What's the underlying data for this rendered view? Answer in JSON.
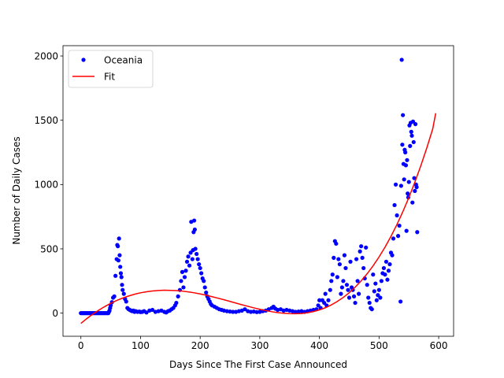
{
  "chart_data": {
    "type": "scatter",
    "title": "",
    "xlabel": "Days Since The First Case Announced",
    "ylabel": "Number of Daily Cases",
    "xlim": [
      -30,
      625
    ],
    "ylim": [
      -180,
      2080
    ],
    "xticks": [
      0,
      100,
      200,
      300,
      400,
      500,
      600
    ],
    "yticks": [
      0,
      500,
      1000,
      1500,
      2000
    ],
    "grid": false,
    "legend_position": "top-left",
    "series": [
      {
        "name": "Oceania",
        "kind": "points",
        "color": "#0000ff",
        "points": [
          [
            0,
            0
          ],
          [
            2,
            0
          ],
          [
            4,
            0
          ],
          [
            6,
            0
          ],
          [
            8,
            0
          ],
          [
            10,
            0
          ],
          [
            12,
            0
          ],
          [
            14,
            0
          ],
          [
            16,
            0
          ],
          [
            18,
            0
          ],
          [
            20,
            0
          ],
          [
            22,
            0
          ],
          [
            24,
            0
          ],
          [
            26,
            0
          ],
          [
            28,
            0
          ],
          [
            30,
            0
          ],
          [
            32,
            0
          ],
          [
            34,
            0
          ],
          [
            36,
            0
          ],
          [
            38,
            0
          ],
          [
            40,
            0
          ],
          [
            42,
            0
          ],
          [
            44,
            0
          ],
          [
            46,
            0
          ],
          [
            47,
            10
          ],
          [
            48,
            20
          ],
          [
            49,
            40
          ],
          [
            50,
            60
          ],
          [
            52,
            85
          ],
          [
            54,
            120
          ],
          [
            56,
            130
          ],
          [
            58,
            290
          ],
          [
            60,
            420
          ],
          [
            61,
            530
          ],
          [
            62,
            520
          ],
          [
            63,
            410
          ],
          [
            64,
            580
          ],
          [
            65,
            450
          ],
          [
            66,
            360
          ],
          [
            67,
            310
          ],
          [
            68,
            280
          ],
          [
            69,
            220
          ],
          [
            70,
            180
          ],
          [
            72,
            150
          ],
          [
            74,
            110
          ],
          [
            76,
            90
          ],
          [
            78,
            40
          ],
          [
            80,
            30
          ],
          [
            82,
            25
          ],
          [
            84,
            20
          ],
          [
            86,
            15
          ],
          [
            88,
            20
          ],
          [
            90,
            10
          ],
          [
            92,
            15
          ],
          [
            95,
            10
          ],
          [
            98,
            12
          ],
          [
            100,
            8
          ],
          [
            103,
            10
          ],
          [
            106,
            15
          ],
          [
            110,
            5
          ],
          [
            115,
            20
          ],
          [
            120,
            25
          ],
          [
            125,
            10
          ],
          [
            130,
            15
          ],
          [
            135,
            20
          ],
          [
            140,
            10
          ],
          [
            143,
            5
          ],
          [
            146,
            15
          ],
          [
            149,
            20
          ],
          [
            152,
            30
          ],
          [
            155,
            40
          ],
          [
            158,
            60
          ],
          [
            160,
            80
          ],
          [
            163,
            130
          ],
          [
            166,
            180
          ],
          [
            168,
            250
          ],
          [
            170,
            320
          ],
          [
            172,
            200
          ],
          [
            174,
            280
          ],
          [
            176,
            330
          ],
          [
            178,
            400
          ],
          [
            180,
            440
          ],
          [
            182,
            370
          ],
          [
            184,
            470
          ],
          [
            185,
            710
          ],
          [
            187,
            420
          ],
          [
            188,
            490
          ],
          [
            189,
            630
          ],
          [
            190,
            720
          ],
          [
            191,
            650
          ],
          [
            192,
            500
          ],
          [
            194,
            460
          ],
          [
            196,
            420
          ],
          [
            198,
            380
          ],
          [
            200,
            350
          ],
          [
            202,
            310
          ],
          [
            204,
            270
          ],
          [
            206,
            250
          ],
          [
            208,
            200
          ],
          [
            210,
            160
          ],
          [
            212,
            130
          ],
          [
            214,
            110
          ],
          [
            216,
            90
          ],
          [
            218,
            70
          ],
          [
            220,
            60
          ],
          [
            224,
            50
          ],
          [
            228,
            40
          ],
          [
            232,
            30
          ],
          [
            236,
            25
          ],
          [
            240,
            20
          ],
          [
            245,
            15
          ],
          [
            250,
            12
          ],
          [
            255,
            10
          ],
          [
            260,
            10
          ],
          [
            265,
            15
          ],
          [
            270,
            20
          ],
          [
            275,
            30
          ],
          [
            280,
            15
          ],
          [
            285,
            10
          ],
          [
            290,
            12
          ],
          [
            295,
            8
          ],
          [
            300,
            10
          ],
          [
            305,
            15
          ],
          [
            310,
            20
          ],
          [
            315,
            30
          ],
          [
            320,
            40
          ],
          [
            323,
            50
          ],
          [
            326,
            35
          ],
          [
            330,
            25
          ],
          [
            335,
            30
          ],
          [
            340,
            20
          ],
          [
            345,
            25
          ],
          [
            350,
            20
          ],
          [
            355,
            15
          ],
          [
            360,
            10
          ],
          [
            365,
            12
          ],
          [
            370,
            15
          ],
          [
            375,
            10
          ],
          [
            380,
            15
          ],
          [
            385,
            20
          ],
          [
            390,
            25
          ],
          [
            395,
            30
          ],
          [
            398,
            60
          ],
          [
            400,
            100
          ],
          [
            402,
            40
          ],
          [
            405,
            100
          ],
          [
            408,
            80
          ],
          [
            410,
            150
          ],
          [
            412,
            60
          ],
          [
            415,
            100
          ],
          [
            418,
            180
          ],
          [
            420,
            250
          ],
          [
            422,
            300
          ],
          [
            424,
            430
          ],
          [
            426,
            560
          ],
          [
            428,
            540
          ],
          [
            430,
            280
          ],
          [
            432,
            420
          ],
          [
            434,
            380
          ],
          [
            436,
            150
          ],
          [
            438,
            200
          ],
          [
            440,
            250
          ],
          [
            442,
            450
          ],
          [
            444,
            350
          ],
          [
            446,
            220
          ],
          [
            448,
            180
          ],
          [
            450,
            120
          ],
          [
            452,
            400
          ],
          [
            454,
            200
          ],
          [
            456,
            180
          ],
          [
            458,
            130
          ],
          [
            460,
            80
          ],
          [
            462,
            420
          ],
          [
            464,
            250
          ],
          [
            466,
            150
          ],
          [
            468,
            480
          ],
          [
            470,
            520
          ],
          [
            472,
            430
          ],
          [
            474,
            350
          ],
          [
            476,
            270
          ],
          [
            478,
            510
          ],
          [
            480,
            220
          ],
          [
            482,
            120
          ],
          [
            484,
            80
          ],
          [
            486,
            40
          ],
          [
            488,
            30
          ],
          [
            490,
            300
          ],
          [
            492,
            170
          ],
          [
            494,
            230
          ],
          [
            496,
            100
          ],
          [
            498,
            140
          ],
          [
            500,
            180
          ],
          [
            502,
            120
          ],
          [
            504,
            250
          ],
          [
            506,
            310
          ],
          [
            508,
            350
          ],
          [
            510,
            300
          ],
          [
            512,
            400
          ],
          [
            514,
            260
          ],
          [
            516,
            330
          ],
          [
            518,
            380
          ],
          [
            520,
            470
          ],
          [
            522,
            450
          ],
          [
            524,
            580
          ],
          [
            526,
            840
          ],
          [
            528,
            1000
          ],
          [
            530,
            760
          ],
          [
            532,
            600
          ],
          [
            534,
            680
          ],
          [
            536,
            90
          ],
          [
            537,
            990
          ],
          [
            538,
            1970
          ],
          [
            539,
            1310
          ],
          [
            540,
            1540
          ],
          [
            541,
            1160
          ],
          [
            542,
            1040
          ],
          [
            543,
            1270
          ],
          [
            544,
            1250
          ],
          [
            545,
            1150
          ],
          [
            546,
            640
          ],
          [
            547,
            1190
          ],
          [
            548,
            930
          ],
          [
            549,
            900
          ],
          [
            550,
            1020
          ],
          [
            551,
            1460
          ],
          [
            552,
            1300
          ],
          [
            553,
            1480
          ],
          [
            554,
            1410
          ],
          [
            555,
            1380
          ],
          [
            556,
            860
          ],
          [
            557,
            1490
          ],
          [
            558,
            1330
          ],
          [
            559,
            1050
          ],
          [
            560,
            950
          ],
          [
            561,
            1470
          ],
          [
            562,
            1000
          ],
          [
            563,
            980
          ],
          [
            564,
            630
          ]
        ]
      },
      {
        "name": "Fit",
        "kind": "line",
        "color": "#ff0000",
        "points": [
          [
            0,
            -80
          ],
          [
            10,
            -42
          ],
          [
            20,
            -8
          ],
          [
            30,
            23
          ],
          [
            40,
            51
          ],
          [
            50,
            76
          ],
          [
            60,
            98
          ],
          [
            70,
            117
          ],
          [
            80,
            133
          ],
          [
            90,
            147
          ],
          [
            100,
            158
          ],
          [
            110,
            166
          ],
          [
            120,
            172
          ],
          [
            130,
            176
          ],
          [
            140,
            178
          ],
          [
            150,
            177
          ],
          [
            160,
            175
          ],
          [
            170,
            171
          ],
          [
            180,
            165
          ],
          [
            190,
            158
          ],
          [
            200,
            149
          ],
          [
            210,
            139
          ],
          [
            220,
            128
          ],
          [
            230,
            116
          ],
          [
            240,
            104
          ],
          [
            250,
            91
          ],
          [
            260,
            78
          ],
          [
            270,
            65
          ],
          [
            280,
            53
          ],
          [
            290,
            41
          ],
          [
            300,
            30
          ],
          [
            310,
            20
          ],
          [
            320,
            11
          ],
          [
            330,
            4
          ],
          [
            340,
            -1
          ],
          [
            350,
            -4
          ],
          [
            360,
            -5
          ],
          [
            370,
            -3
          ],
          [
            380,
            3
          ],
          [
            390,
            12
          ],
          [
            400,
            25
          ],
          [
            410,
            42
          ],
          [
            420,
            64
          ],
          [
            430,
            91
          ],
          [
            440,
            122
          ],
          [
            450,
            159
          ],
          [
            460,
            202
          ],
          [
            470,
            251
          ],
          [
            480,
            306
          ],
          [
            490,
            368
          ],
          [
            500,
            437
          ],
          [
            510,
            513
          ],
          [
            520,
            597
          ],
          [
            530,
            689
          ],
          [
            540,
            790
          ],
          [
            550,
            899
          ],
          [
            560,
            1018
          ],
          [
            570,
            1146
          ],
          [
            580,
            1284
          ],
          [
            590,
            1433
          ],
          [
            595,
            1555
          ]
        ]
      }
    ]
  }
}
